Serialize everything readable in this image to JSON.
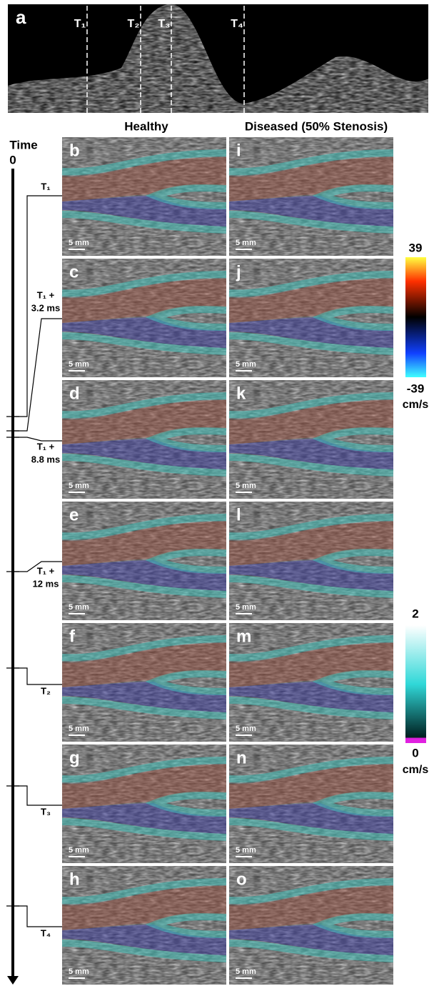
{
  "panel_a": {
    "label": "a",
    "markers": [
      "T₁",
      "T₂",
      "T₃",
      "T₄"
    ]
  },
  "headers": [
    "Healthy",
    "Diseased (50% Stenosis)"
  ],
  "timeline": {
    "title": "Time",
    "start": "0",
    "labels": [
      [
        "T₁"
      ],
      [
        "T₁ +",
        "3.2 ms"
      ],
      [
        "T₁ +",
        "8.8 ms"
      ],
      [
        "T₁ +",
        "12 ms"
      ],
      [
        "T₂"
      ],
      [
        "T₃"
      ],
      [
        "T₄"
      ]
    ]
  },
  "panels": [
    [
      "b",
      "i"
    ],
    [
      "c",
      "j"
    ],
    [
      "d",
      "k"
    ],
    [
      "e",
      "l"
    ],
    [
      "f",
      "m"
    ],
    [
      "g",
      "n"
    ],
    [
      "h",
      "o"
    ]
  ],
  "scale_bar": "5 mm",
  "velocity_colorbar": {
    "max": 39,
    "min": -39,
    "unit": "cm/s"
  },
  "power_colorbar": {
    "max": 2,
    "min": 0,
    "unit": "cm/s"
  }
}
